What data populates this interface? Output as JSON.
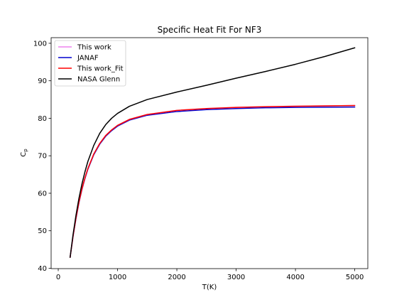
{
  "chart_data": {
    "type": "line",
    "title": "Specific Heat Fit For NF3",
    "xlabel": "T(K)",
    "ylabel_main": "C",
    "ylabel_sub": "p",
    "xlim": [
      -120,
      5220
    ],
    "ylim": [
      39.9,
      101.5
    ],
    "xticks": [
      0,
      1000,
      2000,
      3000,
      4000,
      5000
    ],
    "yticks": [
      40,
      50,
      60,
      70,
      80,
      90,
      100
    ],
    "grid": false,
    "legend_position": "top-left",
    "x": [
      200,
      250,
      300,
      350,
      400,
      450,
      500,
      600,
      700,
      800,
      900,
      1000,
      1200,
      1500,
      2000,
      2500,
      3000,
      3500,
      4000,
      4500,
      5000
    ],
    "series": [
      {
        "name": "This work",
        "color": "#ee82ee",
        "values": [
          42.9,
          48.6,
          53.5,
          57.7,
          61.2,
          64.1,
          66.6,
          70.5,
          73.3,
          75.4,
          76.9,
          78.1,
          79.7,
          81.0,
          82.1,
          82.6,
          82.9,
          83.1,
          83.2,
          83.3,
          83.4
        ]
      },
      {
        "name": "JANAF",
        "color": "#0000cd",
        "values": [
          42.9,
          48.5,
          53.3,
          57.5,
          61.0,
          63.9,
          66.4,
          70.3,
          73.1,
          75.2,
          76.7,
          77.9,
          79.5,
          80.8,
          81.8,
          82.3,
          82.6,
          82.8,
          82.9,
          82.95,
          83.0
        ]
      },
      {
        "name": "This work_Fit",
        "color": "#ff0000",
        "values": [
          42.9,
          48.6,
          53.5,
          57.7,
          61.2,
          64.1,
          66.6,
          70.5,
          73.3,
          75.4,
          76.9,
          78.1,
          79.7,
          81.0,
          82.1,
          82.6,
          82.9,
          83.1,
          83.2,
          83.3,
          83.4
        ]
      },
      {
        "name": "NASA Glenn",
        "color": "#000000",
        "values": [
          42.9,
          49.0,
          54.2,
          58.7,
          62.5,
          65.7,
          68.5,
          72.8,
          76.0,
          78.3,
          80.0,
          81.3,
          83.2,
          85.0,
          87.0,
          88.8,
          90.7,
          92.5,
          94.4,
          96.5,
          98.8
        ]
      }
    ]
  }
}
